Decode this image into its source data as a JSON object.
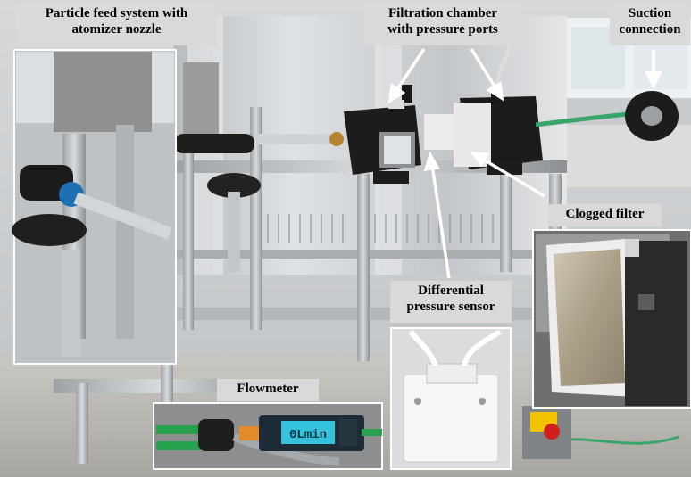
{
  "labels": {
    "particle_feed": [
      "Particle feed system with",
      "atomizer nozzle"
    ],
    "filtration_chamber": [
      "Filtration chamber",
      "with pressure ports"
    ],
    "suction": [
      "Suction",
      "connection"
    ],
    "clogged_filter": "Clogged filter",
    "differential_sensor": [
      "Differential",
      "pressure sensor"
    ],
    "flowmeter": "Flowmeter"
  },
  "flowmeter_display": "0Lmin",
  "colors": {
    "label_bg": "#d9d9d9",
    "frame": "#b9bcbf",
    "chamber": "#1c1c1c",
    "tube": "#3aa56a"
  }
}
